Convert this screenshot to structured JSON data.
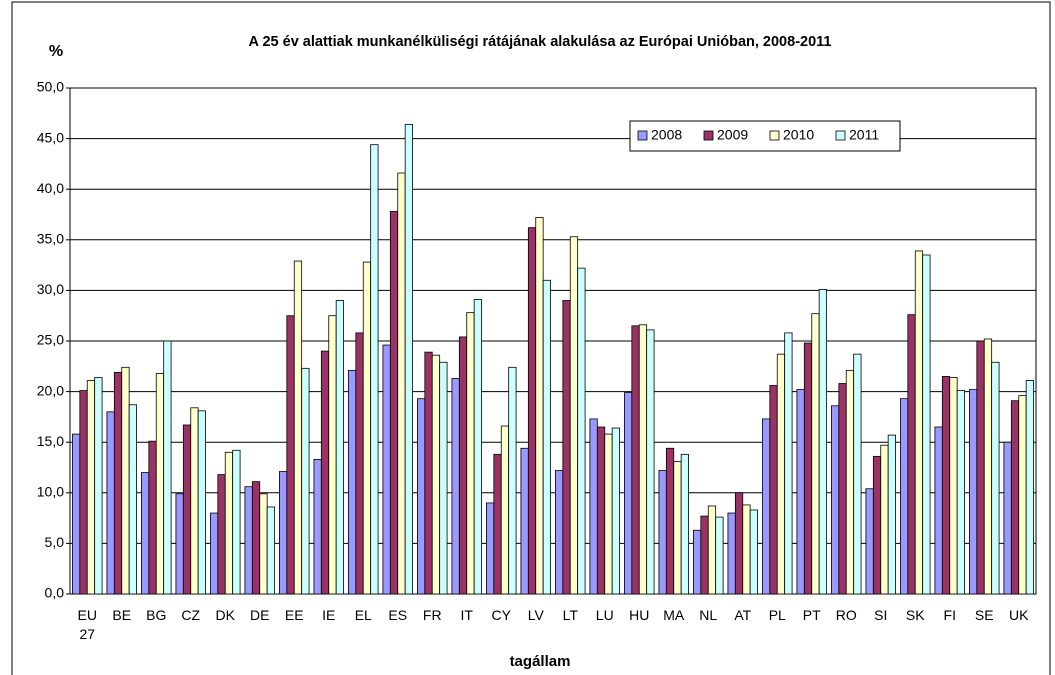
{
  "chart_data": {
    "type": "bar",
    "title": "A 25 év alattiak munkanélküliségi rátájának alakulása az Európai Unióban, 2008-2011",
    "y_label": "%",
    "x_label": "tagállam",
    "categories": [
      "EU 27",
      "BE",
      "BG",
      "CZ",
      "DK",
      "DE",
      "EE",
      "IE",
      "EL",
      "ES",
      "FR",
      "IT",
      "CY",
      "LV",
      "LT",
      "LU",
      "HU",
      "MA",
      "NL",
      "AT",
      "PL",
      "PT",
      "RO",
      "SI",
      "SK",
      "FI",
      "SE",
      "UK"
    ],
    "series": [
      {
        "name": "2008",
        "color": "#9999ff",
        "values": [
          15.8,
          18.0,
          12.0,
          9.9,
          8.0,
          10.6,
          12.1,
          13.3,
          22.1,
          24.6,
          19.3,
          21.3,
          9.0,
          14.4,
          12.2,
          17.3,
          19.9,
          12.2,
          6.3,
          8.0,
          17.3,
          20.2,
          18.6,
          10.4,
          19.3,
          16.5,
          20.2,
          15.0
        ]
      },
      {
        "name": "2009",
        "color": "#993366",
        "values": [
          20.1,
          21.9,
          15.1,
          16.7,
          11.8,
          11.1,
          27.5,
          24.0,
          25.8,
          37.8,
          23.9,
          25.4,
          13.8,
          36.2,
          29.0,
          16.5,
          26.5,
          14.4,
          7.7,
          10.0,
          20.6,
          24.8,
          20.8,
          13.6,
          27.6,
          21.5,
          25.0,
          19.1
        ]
      },
      {
        "name": "2010",
        "color": "#ffffcc",
        "values": [
          21.1,
          22.4,
          21.8,
          18.4,
          14.0,
          9.9,
          32.9,
          27.5,
          32.8,
          41.6,
          23.6,
          27.8,
          16.6,
          37.2,
          35.3,
          15.8,
          26.6,
          13.1,
          8.7,
          8.8,
          23.7,
          27.7,
          22.1,
          14.7,
          33.9,
          21.4,
          25.2,
          19.6
        ]
      },
      {
        "name": "2011",
        "color": "#ccffff",
        "values": [
          21.4,
          18.7,
          25.0,
          18.1,
          14.2,
          8.6,
          22.3,
          29.0,
          44.4,
          46.4,
          22.9,
          29.1,
          22.4,
          31.0,
          32.2,
          16.4,
          26.1,
          13.8,
          7.6,
          8.3,
          25.8,
          30.1,
          23.7,
          15.7,
          33.5,
          20.1,
          22.9,
          21.1
        ]
      }
    ],
    "ylim": [
      0,
      50
    ],
    "yticks": [
      {
        "value": 0,
        "label": "0,0"
      },
      {
        "value": 5,
        "label": "5,0"
      },
      {
        "value": 10,
        "label": "10,0"
      },
      {
        "value": 15,
        "label": "15,0"
      },
      {
        "value": 20,
        "label": "20,0"
      },
      {
        "value": 25,
        "label": "25,0"
      },
      {
        "value": 30,
        "label": "30,0"
      },
      {
        "value": 35,
        "label": "35,0"
      },
      {
        "value": 40,
        "label": "40,0"
      },
      {
        "value": 45,
        "label": "45,0"
      },
      {
        "value": 50,
        "label": "50,0"
      }
    ],
    "grid": true
  }
}
